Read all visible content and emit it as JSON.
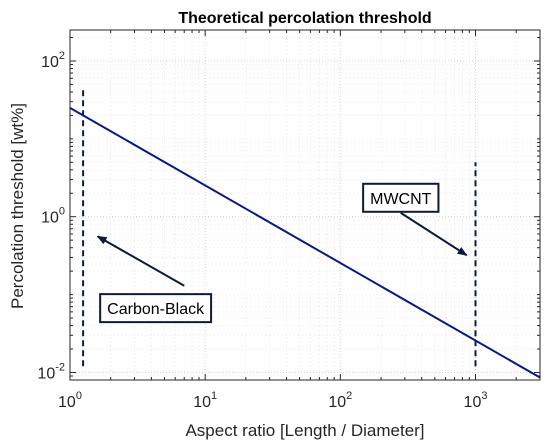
{
  "chart_data": {
    "type": "line",
    "title": "Theoretical percolation threshold",
    "xlabel": "Aspect ratio [Length / Diameter]",
    "ylabel": "Percolation threshold [wt%]",
    "x_scale": "log",
    "y_scale": "log",
    "xlim": [
      1,
      3000
    ],
    "ylim": [
      0.008,
      250
    ],
    "x_ticks": [
      {
        "value": 1,
        "base": "10",
        "exp": "0"
      },
      {
        "value": 10,
        "base": "10",
        "exp": "1"
      },
      {
        "value": 100,
        "base": "10",
        "exp": "2"
      },
      {
        "value": 1000,
        "base": "10",
        "exp": "3"
      }
    ],
    "y_ticks": [
      {
        "value": 0.01,
        "base": "10",
        "exp": "-2"
      },
      {
        "value": 1,
        "base": "10",
        "exp": "0"
      },
      {
        "value": 100,
        "base": "10",
        "exp": "2"
      }
    ],
    "grid": true,
    "series": [
      {
        "x": [
          1,
          3000
        ],
        "y": [
          25,
          0.0086
        ],
        "color": "#0a1a80",
        "style": "solid"
      }
    ],
    "reference_lines": [
      {
        "x": 1.25,
        "y_range": [
          0.012,
          45
        ],
        "color": "#0f1a4a",
        "style": "dashed"
      },
      {
        "x": 1000,
        "y_range": [
          0.012,
          5
        ],
        "color": "#0f1a4a",
        "style": "dashed"
      }
    ],
    "annotations": [
      {
        "text": "Carbon-Black",
        "box_at": [
          4.3,
          0.067
        ],
        "arrow_from": [
          7,
          0.13
        ],
        "arrow_to": [
          1.6,
          0.56
        ]
      },
      {
        "text": "MWCNT",
        "box_at": [
          280,
          1.75
        ],
        "arrow_from": [
          280,
          1.12
        ],
        "arrow_to": [
          860,
          0.32
        ]
      }
    ]
  }
}
